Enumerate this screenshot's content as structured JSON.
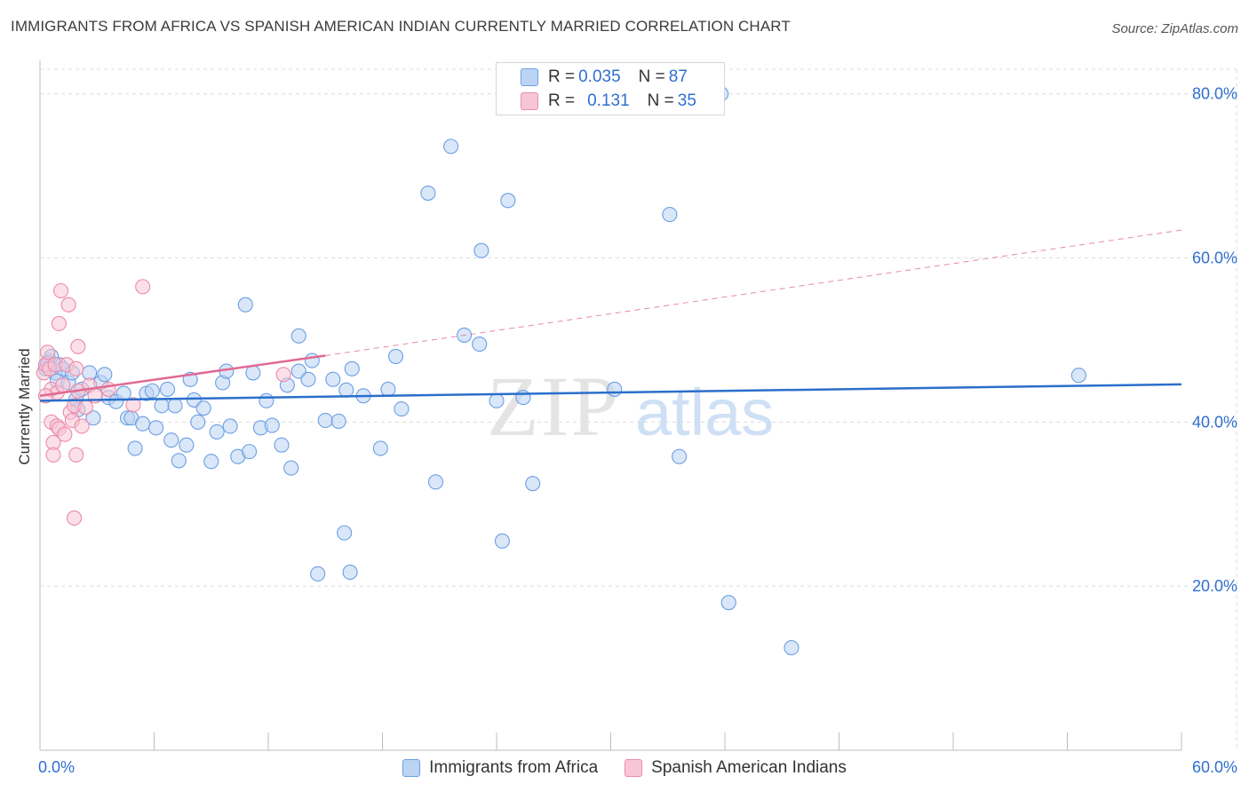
{
  "header": {
    "title": "IMMIGRANTS FROM AFRICA VS SPANISH AMERICAN INDIAN CURRENTLY MARRIED CORRELATION CHART",
    "source": "Source: ZipAtlas.com"
  },
  "watermark": {
    "zip": "ZIP",
    "atlas": "atlas"
  },
  "colors": {
    "blue": "#6a9fe3",
    "blue_fill": "#bcd4f4",
    "blue_line": "#2a6fcc",
    "pink": "#ec8aaa",
    "pink_fill": "#f7c6d6",
    "pink_line": "#e06a92",
    "tick_label": "#2f6fd0",
    "grid": "#dcdcdc"
  },
  "correlation_legend": {
    "rows": [
      {
        "r_label": "R = ",
        "r_value": "0.035",
        "n_label": "N = ",
        "n_value": "87",
        "series": "blue"
      },
      {
        "r_label": "R = ",
        "r_value": "0.131",
        "n_label": "N = ",
        "n_value": "35",
        "series": "pink"
      }
    ]
  },
  "chart_data": {
    "type": "scatter",
    "title": "IMMIGRANTS FROM AFRICA VS SPANISH AMERICAN INDIAN CURRENTLY MARRIED CORRELATION CHART",
    "xlabel": "",
    "ylabel": "Currently Married",
    "xlim": [
      0,
      60
    ],
    "ylim": [
      0,
      83
    ],
    "x_tick_labels": [
      {
        "value": 0,
        "label": "0.0%"
      },
      {
        "value": 60,
        "label": "60.0%"
      }
    ],
    "x_minor_ticks": [
      0,
      6,
      12,
      18,
      24,
      30,
      36,
      42,
      48,
      54,
      60
    ],
    "y_ticks": [
      {
        "value": 20,
        "label": "20.0%"
      },
      {
        "value": 40,
        "label": "40.0%"
      },
      {
        "value": 60,
        "label": "60.0%"
      },
      {
        "value": 80,
        "label": "80.0%"
      }
    ],
    "grid": true,
    "legend_position": "bottom",
    "series": [
      {
        "name": "Immigrants from Africa",
        "color": "blue",
        "R": 0.035,
        "N": 87,
        "trend": {
          "x": [
            0,
            60
          ],
          "y": [
            42.6,
            44.6
          ],
          "dashed_extension": false
        },
        "points": [
          [
            0.3,
            46.5
          ],
          [
            0.5,
            47.5
          ],
          [
            0.6,
            48
          ],
          [
            0.8,
            46
          ],
          [
            1.0,
            47
          ],
          [
            1.2,
            46.5
          ],
          [
            0.9,
            45
          ],
          [
            1.5,
            44.8
          ],
          [
            1.7,
            46
          ],
          [
            1.9,
            42.8
          ],
          [
            2.2,
            44
          ],
          [
            2.0,
            41.5
          ],
          [
            2.6,
            46
          ],
          [
            2.8,
            40.5
          ],
          [
            3.2,
            44.8
          ],
          [
            3.4,
            45.8
          ],
          [
            3.6,
            43
          ],
          [
            4.0,
            42.5
          ],
          [
            4.4,
            43.5
          ],
          [
            4.6,
            40.5
          ],
          [
            4.8,
            40.5
          ],
          [
            5.0,
            36.8
          ],
          [
            5.4,
            39.8
          ],
          [
            5.6,
            43.5
          ],
          [
            5.9,
            43.8
          ],
          [
            6.1,
            39.3
          ],
          [
            6.4,
            42
          ],
          [
            6.7,
            44
          ],
          [
            6.9,
            37.8
          ],
          [
            7.1,
            42
          ],
          [
            7.3,
            35.3
          ],
          [
            7.7,
            37.2
          ],
          [
            7.9,
            45.2
          ],
          [
            8.1,
            42.7
          ],
          [
            8.3,
            40
          ],
          [
            8.6,
            41.7
          ],
          [
            9.0,
            35.2
          ],
          [
            9.3,
            38.8
          ],
          [
            9.6,
            44.8
          ],
          [
            9.8,
            46.2
          ],
          [
            10.0,
            39.5
          ],
          [
            10.4,
            35.8
          ],
          [
            10.8,
            54.3
          ],
          [
            11.0,
            36.4
          ],
          [
            11.2,
            46
          ],
          [
            11.6,
            39.3
          ],
          [
            11.9,
            42.6
          ],
          [
            12.2,
            39.6
          ],
          [
            12.7,
            37.2
          ],
          [
            13.0,
            44.5
          ],
          [
            13.2,
            34.4
          ],
          [
            13.6,
            50.5
          ],
          [
            13.6,
            46.2
          ],
          [
            14.1,
            45.2
          ],
          [
            14.3,
            47.5
          ],
          [
            14.6,
            21.5
          ],
          [
            15.0,
            40.2
          ],
          [
            15.4,
            45.2
          ],
          [
            15.7,
            40.1
          ],
          [
            16.0,
            26.5
          ],
          [
            16.1,
            43.9
          ],
          [
            16.3,
            21.7
          ],
          [
            16.4,
            46.5
          ],
          [
            17.0,
            43.2
          ],
          [
            17.9,
            36.8
          ],
          [
            18.3,
            44
          ],
          [
            18.7,
            48
          ],
          [
            19.0,
            41.6
          ],
          [
            20.4,
            67.9
          ],
          [
            20.8,
            32.7
          ],
          [
            21.6,
            73.6
          ],
          [
            22.3,
            50.6
          ],
          [
            23.1,
            49.5
          ],
          [
            23.2,
            60.9
          ],
          [
            24.0,
            42.6
          ],
          [
            24.3,
            25.5
          ],
          [
            24.6,
            67
          ],
          [
            25.4,
            43
          ],
          [
            25.9,
            32.5
          ],
          [
            30.2,
            44
          ],
          [
            33.1,
            65.3
          ],
          [
            33.6,
            35.8
          ],
          [
            35.8,
            80
          ],
          [
            36.2,
            18
          ],
          [
            39.5,
            12.5
          ],
          [
            54.6,
            45.7
          ],
          [
            0.4,
            47.2
          ]
        ]
      },
      {
        "name": "Spanish American Indians",
        "color": "pink",
        "R": 0.131,
        "N": 35,
        "trend": {
          "x": [
            0,
            15
          ],
          "y": [
            43.2,
            48.1
          ],
          "dashed_extension": {
            "x": [
              15,
              60
            ],
            "y": [
              48.1,
              63.4
            ]
          }
        },
        "points": [
          [
            0.2,
            46
          ],
          [
            0.3,
            47
          ],
          [
            0.4,
            48.5
          ],
          [
            0.5,
            46.5
          ],
          [
            0.6,
            44
          ],
          [
            0.6,
            40
          ],
          [
            0.7,
            37.5
          ],
          [
            0.7,
            36
          ],
          [
            0.8,
            47
          ],
          [
            0.9,
            43.6
          ],
          [
            0.9,
            39.5
          ],
          [
            1.0,
            39.2
          ],
          [
            1.0,
            52
          ],
          [
            1.1,
            56
          ],
          [
            1.2,
            44.5
          ],
          [
            1.3,
            38.5
          ],
          [
            1.4,
            47
          ],
          [
            1.5,
            54.3
          ],
          [
            1.6,
            41.2
          ],
          [
            1.7,
            40.2
          ],
          [
            1.8,
            42
          ],
          [
            1.9,
            46.5
          ],
          [
            2.0,
            43.8
          ],
          [
            1.9,
            36
          ],
          [
            1.8,
            28.3
          ],
          [
            2.0,
            49.2
          ],
          [
            2.2,
            39.5
          ],
          [
            2.4,
            41.8
          ],
          [
            2.6,
            44.5
          ],
          [
            2.9,
            43.2
          ],
          [
            3.6,
            44
          ],
          [
            4.9,
            42.1
          ],
          [
            5.4,
            56.5
          ],
          [
            12.8,
            45.8
          ],
          [
            0.3,
            43.2
          ]
        ]
      }
    ]
  }
}
